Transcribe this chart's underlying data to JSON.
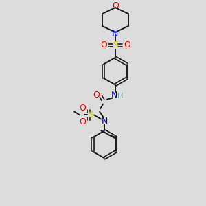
{
  "bg_color": "#dcdcdc",
  "bond_color": "#1a1a1a",
  "colors": {
    "O": "#ff0000",
    "N": "#0000ee",
    "S": "#cccc00",
    "C": "#1a1a1a",
    "H": "#5a9a9a"
  }
}
